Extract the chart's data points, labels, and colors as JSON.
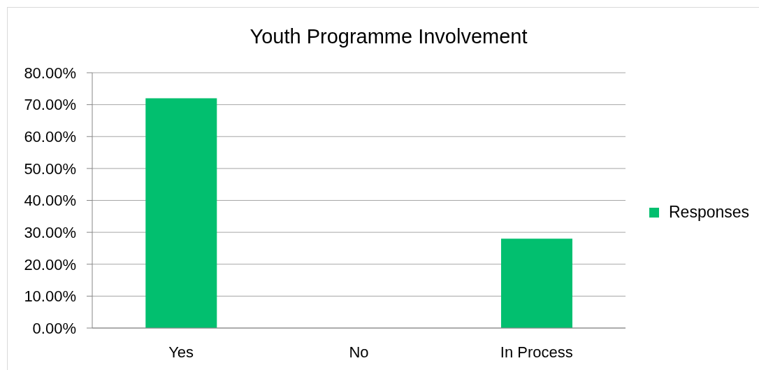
{
  "chart_data": {
    "type": "bar",
    "title": "Youth Programme Involvement",
    "categories": [
      "Yes",
      "No",
      "In Process"
    ],
    "series": [
      {
        "name": "Responses",
        "color": "#02bf6f",
        "values": [
          72,
          0,
          28
        ]
      }
    ],
    "ylim": [
      0,
      80
    ],
    "yticks": [
      {
        "value": 0,
        "label": "0.00%"
      },
      {
        "value": 10,
        "label": "10.00%"
      },
      {
        "value": 20,
        "label": "20.00%"
      },
      {
        "value": 30,
        "label": "30.00%"
      },
      {
        "value": 40,
        "label": "40.00%"
      },
      {
        "value": 50,
        "label": "50.00%"
      },
      {
        "value": 60,
        "label": "60.00%"
      },
      {
        "value": 70,
        "label": "70.00%"
      },
      {
        "value": 80,
        "label": "80.00%"
      }
    ],
    "grid": "y",
    "legend": "right"
  }
}
